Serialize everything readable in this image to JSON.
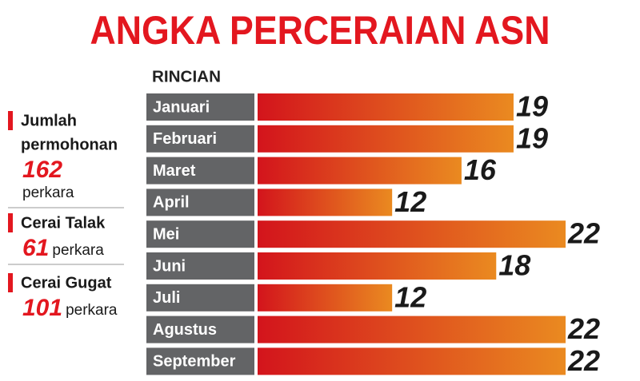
{
  "chart_data": {
    "type": "bar",
    "orientation": "horizontal",
    "title": "ANGKA PERCERAIAN ASN",
    "subtitle": "RINCIAN",
    "categories": [
      "Januari",
      "Februari",
      "Maret",
      "April",
      "Mei",
      "Juni",
      "Juli",
      "Agustus",
      "September"
    ],
    "values": [
      19,
      19,
      16,
      12,
      22,
      18,
      12,
      22,
      22
    ],
    "gradient": [
      "#d3141c",
      "#ea8a20"
    ],
    "label_color": "#636466",
    "title_color": "#e3171f",
    "xlim": [
      0,
      22
    ]
  },
  "summary": [
    {
      "label": [
        "Jumlah",
        "permohonan"
      ],
      "value": 162,
      "unit": "perkara"
    },
    {
      "label": [
        "Cerai Talak"
      ],
      "value": 61,
      "unit": "perkara"
    },
    {
      "label": [
        "Cerai Gugat"
      ],
      "value": 101,
      "unit": "perkara"
    }
  ]
}
